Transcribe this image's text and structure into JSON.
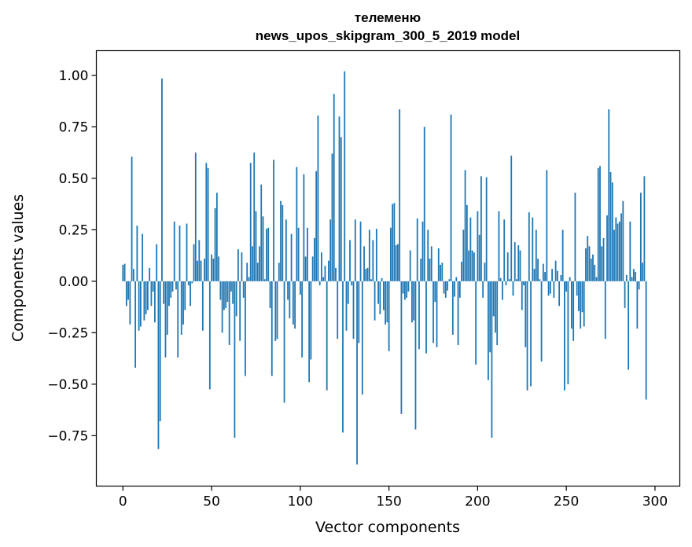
{
  "chart_data": {
    "type": "bar",
    "title": "телеменю",
    "subtitle": "news_upos_skipgram_300_5_2019 model",
    "xlabel": "Vector components",
    "ylabel": "Components values",
    "xlim": [
      -15,
      314
    ],
    "ylim": [
      -0.995,
      1.12
    ],
    "xticks": [
      0,
      50,
      100,
      150,
      200,
      250,
      300
    ],
    "yticks": [
      -0.75,
      -0.5,
      -0.25,
      0.0,
      0.25,
      0.5,
      0.75,
      1.0
    ],
    "ytick_labels": [
      "−0.75",
      "−0.50",
      "−0.25",
      "0.00",
      "0.25",
      "0.50",
      "0.75",
      "1.00"
    ],
    "bar_color": "#1f77b4",
    "grid": false,
    "legend": "none",
    "values": [
      0.08,
      0.085,
      -0.12,
      -0.09,
      -0.21,
      0.605,
      0.06,
      -0.42,
      0.27,
      -0.24,
      -0.22,
      0.23,
      -0.19,
      -0.16,
      -0.14,
      0.065,
      -0.12,
      -0.05,
      -0.2,
      0.18,
      -0.815,
      -0.68,
      0.985,
      -0.11,
      -0.37,
      -0.26,
      -0.12,
      -0.08,
      -0.05,
      0.29,
      -0.04,
      -0.37,
      0.27,
      -0.26,
      -0.21,
      -0.14,
      0.28,
      -0.02,
      -0.12,
      -0.01,
      0.18,
      0.625,
      0.1,
      0.2,
      0.1,
      -0.24,
      0.11,
      0.575,
      0.55,
      -0.525,
      0.13,
      0.11,
      0.355,
      0.43,
      0.12,
      -0.09,
      -0.25,
      -0.14,
      -0.13,
      -0.1,
      -0.31,
      -0.05,
      -0.11,
      -0.76,
      -0.17,
      0.155,
      -0.29,
      0.14,
      -0.08,
      -0.46,
      0.09,
      0.02,
      0.575,
      0.17,
      0.625,
      0.34,
      0.09,
      0.17,
      0.47,
      0.315,
      0.01,
      0.255,
      0.26,
      -0.13,
      -0.46,
      0.59,
      -0.29,
      -0.28,
      0.09,
      0.39,
      0.37,
      -0.59,
      0.3,
      -0.09,
      -0.18,
      0.23,
      -0.21,
      -0.23,
      0.555,
      0.26,
      -0.065,
      -0.37,
      0.52,
      0.12,
      0.26,
      -0.49,
      -0.38,
      0.12,
      0.21,
      0.535,
      0.805,
      -0.02,
      0.14,
      0.02,
      0.075,
      -0.53,
      0.1,
      0.3,
      0.62,
      0.91,
      0.065,
      -0.28,
      0.8,
      0.7,
      -0.735,
      1.02,
      -0.24,
      -0.11,
      0.2,
      -0.02,
      -0.28,
      0.3,
      -0.89,
      -0.3,
      0.29,
      -0.55,
      0.17,
      0.06,
      0.065,
      0.25,
      0.01,
      0.2,
      -0.19,
      0.255,
      -0.11,
      -0.16,
      0.015,
      -0.14,
      -0.21,
      -0.2,
      -0.34,
      0.26,
      0.375,
      0.38,
      0.175,
      0.18,
      0.835,
      -0.645,
      -0.06,
      -0.09,
      -0.08,
      -0.05,
      0.15,
      -0.2,
      -0.19,
      -0.72,
      0.305,
      -0.33,
      0.11,
      0.29,
      0.75,
      -0.35,
      0.25,
      0.11,
      0.17,
      -0.3,
      -0.1,
      -0.32,
      0.16,
      0.08,
      0.09,
      -0.06,
      -0.08,
      -0.045,
      0.01,
      0.81,
      -0.26,
      -0.075,
      0.02,
      -0.31,
      -0.08,
      0.095,
      0.25,
      0.54,
      0.37,
      0.15,
      0.31,
      0.15,
      0.14,
      -0.405,
      0.34,
      0.225,
      0.51,
      -0.08,
      0.09,
      0.505,
      -0.48,
      -0.345,
      -0.76,
      -0.17,
      -0.25,
      -0.31,
      0.34,
      0.015,
      -0.09,
      0.3,
      -0.02,
      0.14,
      0.01,
      0.61,
      -0.07,
      0.19,
      0.01,
      0.175,
      0.15,
      -0.14,
      -0.02,
      -0.32,
      -0.53,
      0.335,
      -0.51,
      0.31,
      0.06,
      0.25,
      0.11,
      0.01,
      -0.39,
      0.085,
      0.045,
      0.54,
      -0.07,
      -0.06,
      0.06,
      -0.08,
      0.1,
      0.05,
      -0.12,
      0.03,
      0.25,
      -0.53,
      -0.05,
      -0.5,
      0.02,
      -0.23,
      -0.29,
      0.43,
      -0.07,
      -0.145,
      -0.23,
      -0.15,
      -0.22,
      0.16,
      0.22,
      0.17,
      0.11,
      0.13,
      0.08,
      0.02,
      0.55,
      0.56,
      0.17,
      0.21,
      -0.28,
      0.32,
      0.835,
      0.53,
      0.48,
      0.25,
      0.31,
      0.28,
      0.29,
      0.33,
      0.39,
      -0.13,
      0.03,
      -0.43,
      0.29,
      0.02,
      0.06,
      0.045,
      -0.23,
      -0.04,
      0.43,
      0.09,
      0.51,
      -0.575
    ]
  }
}
